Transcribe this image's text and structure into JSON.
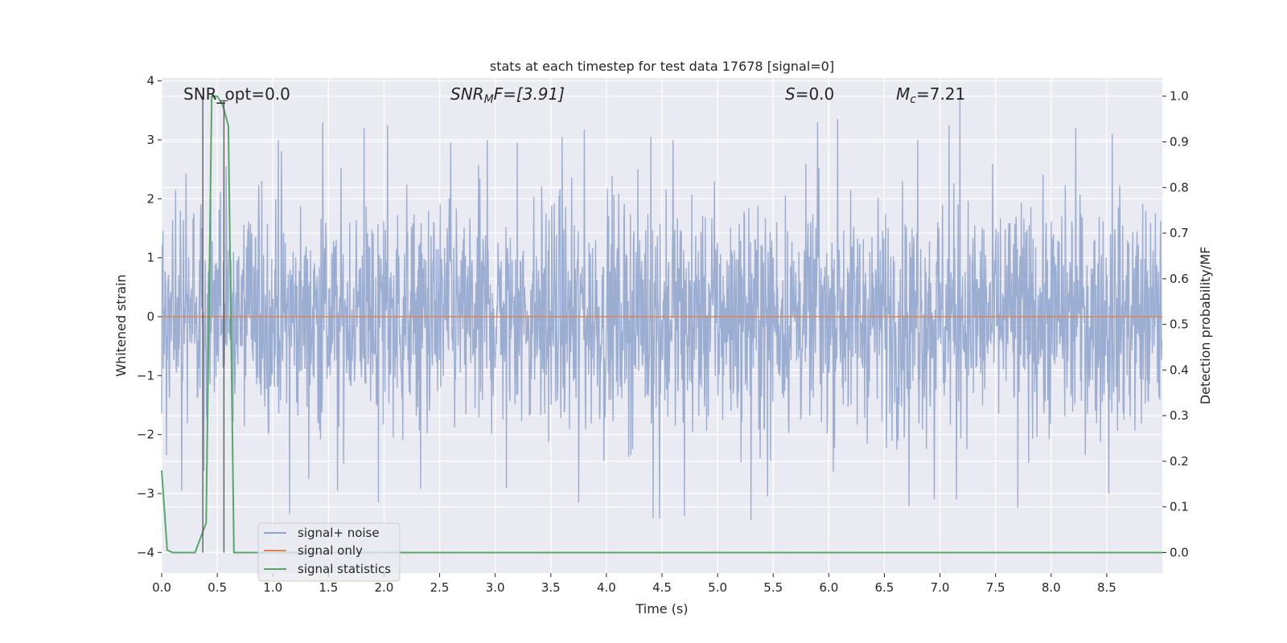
{
  "chart_data": {
    "type": "line",
    "title": "stats at each timestep for test data 17678 [signal=0]",
    "xlabel": "Time (s)",
    "ylabel": "Whitened strain",
    "y2label": "Detection probability/MF",
    "xlim": [
      0.0,
      9.0
    ],
    "ylim": [
      -4.35,
      4.05
    ],
    "y2lim": [
      -0.045,
      1.04
    ],
    "xticks": [
      "0.0",
      "0.5",
      "1.0",
      "1.5",
      "2.0",
      "2.5",
      "3.0",
      "3.5",
      "4.0",
      "4.5",
      "5.0",
      "5.5",
      "6.0",
      "6.5",
      "7.0",
      "7.5",
      "8.0",
      "8.5"
    ],
    "yticks": [
      "−4",
      "−3",
      "−2",
      "−1",
      "0",
      "1",
      "2",
      "3",
      "4"
    ],
    "y2ticks": [
      "0.0",
      "0.1",
      "0.2",
      "0.3",
      "0.4",
      "0.5",
      "0.6",
      "0.7",
      "0.8",
      "0.9",
      "1.0"
    ],
    "grid": true,
    "legend_position": "lower-left",
    "annotations": {
      "snr_opt": "SNR_opt=0.0",
      "snr_mf_sym": "SNR",
      "snr_mf_sub": "M",
      "snr_mf_rest": "F=[3.91]",
      "s_sym": "S",
      "s_rest": "=0.0",
      "mc_sym": "M",
      "mc_sub": "c",
      "mc_rest": "=7.21"
    },
    "series": [
      {
        "name": "signal+ noise",
        "color": "#8ea2cc",
        "description_of_values": "dense noise band",
        "band": {
          "typical_low": -1.4,
          "typical_high": 1.4,
          "min": -3.45,
          "max": 3.68
        },
        "peaks": [
          [
            0.22,
            2.43
          ],
          [
            0.38,
            2.6
          ],
          [
            0.58,
            2.55
          ],
          [
            0.9,
            2.3
          ],
          [
            1.05,
            3.0
          ],
          [
            1.45,
            3.3
          ],
          [
            1.82,
            3.2
          ],
          [
            2.03,
            3.25
          ],
          [
            2.6,
            2.95
          ],
          [
            2.93,
            3.0
          ],
          [
            3.2,
            2.95
          ],
          [
            3.6,
            3.05
          ],
          [
            3.8,
            3.17
          ],
          [
            4.4,
            3.05
          ],
          [
            4.6,
            3.0
          ],
          [
            5.3,
            3.1
          ],
          [
            5.9,
            3.3
          ],
          [
            6.08,
            3.35
          ],
          [
            6.8,
            3.0
          ],
          [
            7.08,
            3.25
          ],
          [
            7.18,
            3.68
          ],
          [
            8.22,
            3.2
          ],
          [
            8.55,
            3.1
          ]
        ],
        "troughs": [
          [
            0.18,
            -2.95
          ],
          [
            0.38,
            -2.62
          ],
          [
            1.15,
            -3.35
          ],
          [
            1.58,
            -2.95
          ],
          [
            1.95,
            -3.15
          ],
          [
            2.33,
            -2.92
          ],
          [
            3.1,
            -2.9
          ],
          [
            3.75,
            -3.15
          ],
          [
            4.42,
            -3.42
          ],
          [
            4.48,
            -3.42
          ],
          [
            4.7,
            -3.38
          ],
          [
            5.3,
            -3.45
          ],
          [
            5.45,
            -3.05
          ],
          [
            6.72,
            -3.22
          ],
          [
            6.95,
            -3.1
          ],
          [
            7.15,
            -3.1
          ],
          [
            7.7,
            -3.25
          ],
          [
            8.52,
            -3.0
          ]
        ]
      },
      {
        "name": "signal only",
        "color": "#dd8452",
        "x": [
          0.0,
          9.0
        ],
        "y": [
          0.0,
          0.0
        ]
      },
      {
        "name": "signal statistics",
        "color": "#55a868",
        "axis": "right",
        "x": [
          0.0,
          0.05,
          0.1,
          0.3,
          0.4,
          0.45,
          0.5,
          0.55,
          0.6,
          0.65,
          0.7,
          1.0,
          2.0,
          4.0,
          6.0,
          8.0,
          9.0
        ],
        "y": [
          0.18,
          0.005,
          0.0,
          0.0,
          0.065,
          1.0,
          1.0,
          0.98,
          0.935,
          0.0,
          0.0,
          0.0,
          0.0,
          0.0,
          0.0,
          0.0,
          0.0
        ]
      }
    ],
    "vertical_markers": [
      {
        "x": 0.37,
        "y2_top": 1.0
      },
      {
        "x": 0.56,
        "y2_top": 0.99
      }
    ]
  }
}
